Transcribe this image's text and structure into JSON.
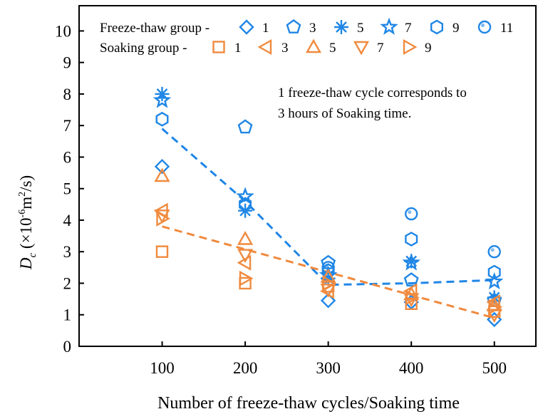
{
  "chart_data": {
    "type": "scatter",
    "title": "",
    "xlabel": "Number of freeze-thaw cycles/Soaking time",
    "ylabel": {
      "main": "D",
      "sub": "c",
      "unit_pre": " (×10",
      "unit_exp": "-6",
      "unit_mid": "m",
      "unit_exp2": "2",
      "unit_post": "/s)"
    },
    "xlim": [
      0,
      550
    ],
    "ylim": [
      0,
      10.8
    ],
    "x_ticks": [
      100,
      200,
      300,
      400,
      500
    ],
    "y_ticks": [
      0,
      1,
      2,
      3,
      4,
      5,
      6,
      7,
      8,
      9,
      10
    ],
    "grid": false,
    "legend_position": "top",
    "annotation": [
      "1 freeze-thaw cycle corresponds to",
      "3 hours of Soaking time."
    ],
    "colors": {
      "freeze_thaw": "#1f86e6",
      "soaking": "#f08a3e"
    },
    "groups": [
      {
        "name": "Freeze-thaw group -",
        "color": "#1f86e6",
        "series": [
          {
            "name": "1",
            "marker": "diamond",
            "points": [
              [
                100,
                5.7
              ],
              [
                300,
                1.45
              ],
              [
                400,
                1.4
              ],
              [
                500,
                0.85
              ]
            ]
          },
          {
            "name": "3",
            "marker": "pentagon",
            "points": [
              [
                200,
                6.95
              ],
              [
                300,
                2.65
              ],
              [
                400,
                2.1
              ],
              [
                500,
                1.45
              ]
            ]
          },
          {
            "name": "5",
            "marker": "asterisk",
            "points": [
              [
                100,
                8.0
              ],
              [
                200,
                4.3
              ],
              [
                300,
                2.15
              ],
              [
                400,
                2.7
              ],
              [
                500,
                1.55
              ]
            ]
          },
          {
            "name": "7",
            "marker": "star",
            "points": [
              [
                100,
                7.8
              ],
              [
                200,
                4.75
              ],
              [
                300,
                2.25
              ],
              [
                400,
                2.65
              ],
              [
                500,
                2.05
              ]
            ]
          },
          {
            "name": "9",
            "marker": "hexagon",
            "points": [
              [
                100,
                7.2
              ],
              [
                200,
                4.5
              ],
              [
                300,
                2.4
              ],
              [
                400,
                3.4
              ],
              [
                500,
                2.35
              ]
            ]
          },
          {
            "name": "11",
            "marker": "circle",
            "points": [
              [
                300,
                2.5
              ],
              [
                400,
                4.2
              ],
              [
                500,
                3.0
              ]
            ]
          }
        ],
        "trend": [
          [
            100,
            6.9
          ],
          [
            200,
            4.6
          ],
          [
            300,
            1.95
          ],
          [
            400,
            2.0
          ],
          [
            500,
            2.1
          ]
        ]
      },
      {
        "name": "Soaking group -",
        "color": "#f08a3e",
        "series": [
          {
            "name": "1",
            "marker": "square",
            "points": [
              [
                100,
                3.0
              ],
              [
                200,
                2.0
              ],
              [
                300,
                1.9
              ],
              [
                400,
                1.35
              ],
              [
                500,
                1.1
              ]
            ]
          },
          {
            "name": "3",
            "marker": "triangle-left",
            "points": [
              [
                100,
                4.3
              ],
              [
                200,
                2.65
              ],
              [
                300,
                1.75
              ],
              [
                400,
                1.75
              ],
              [
                500,
                1.4
              ]
            ]
          },
          {
            "name": "5",
            "marker": "triangle-up",
            "points": [
              [
                100,
                5.4
              ],
              [
                200,
                3.4
              ],
              [
                300,
                2.2
              ],
              [
                400,
                1.65
              ],
              [
                500,
                1.3
              ]
            ]
          },
          {
            "name": "7",
            "marker": "triangle-down",
            "points": [
              [
                100,
                4.15
              ],
              [
                200,
                2.9
              ],
              [
                300,
                1.8
              ],
              [
                400,
                1.5
              ],
              [
                500,
                1.0
              ]
            ]
          },
          {
            "name": "9",
            "marker": "triangle-right",
            "points": [
              [
                100,
                4.05
              ],
              [
                200,
                2.15
              ],
              [
                300,
                2.0
              ],
              [
                400,
                1.55
              ],
              [
                500,
                1.25
              ]
            ]
          }
        ],
        "trend": [
          [
            100,
            3.8
          ],
          [
            500,
            0.9
          ]
        ]
      }
    ]
  }
}
